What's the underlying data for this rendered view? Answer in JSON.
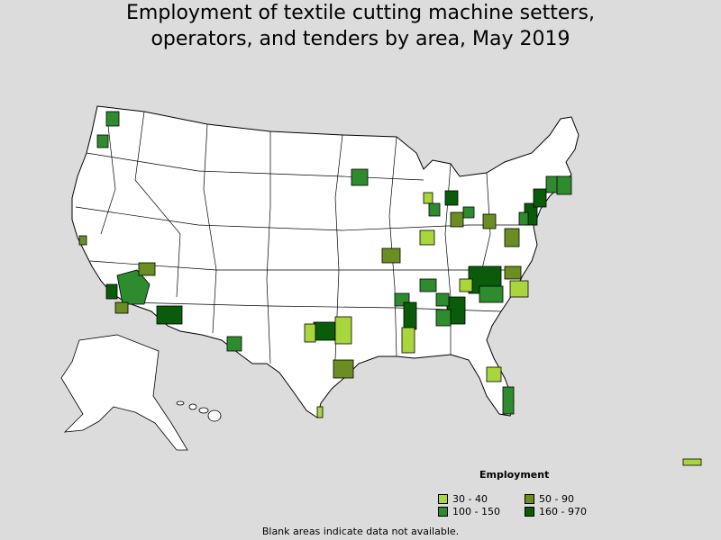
{
  "title_line1": "Employment of textile cutting machine setters,",
  "title_line2": "operators, and tenders by area, May 2019",
  "legend": {
    "title": "Employment",
    "items": [
      {
        "label": "30 - 40",
        "color": "#a8d63c"
      },
      {
        "label": "50 - 90",
        "color": "#6b8e23"
      },
      {
        "label": "100 - 150",
        "color": "#2e8b2e"
      },
      {
        "label": "160 - 970",
        "color": "#0a5c0a"
      }
    ]
  },
  "footnote": "Blank areas indicate data not available.",
  "colors": {
    "background": "#dcdcdc",
    "land": "#ffffff",
    "border": "#000000"
  }
}
